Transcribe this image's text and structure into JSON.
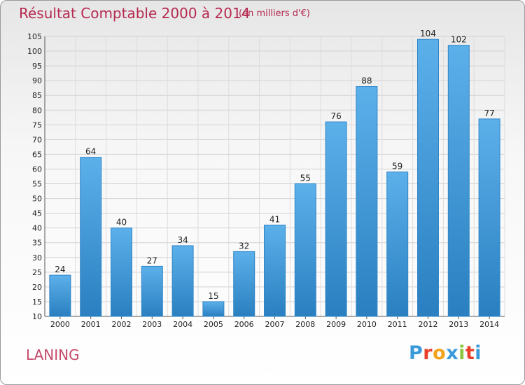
{
  "header": {
    "title": "Résultat Comptable 2000 à 2014",
    "subtitle": "(en milliers d'€)"
  },
  "footer": {
    "place": "LANING",
    "logo_letters": [
      "P",
      "r",
      "o",
      "x",
      "i",
      "t",
      "i"
    ],
    "logo_colors": [
      "#3a9ad9",
      "#e8402a",
      "#f2a31b",
      "#3a9ad9",
      "#8dc63f",
      "#e8402a",
      "#3a9ad9"
    ]
  },
  "chart_data": {
    "type": "bar",
    "title": "Résultat Comptable 2000 à 2014",
    "subtitle": "(en milliers d'€)",
    "categories": [
      "2000",
      "2001",
      "2002",
      "2003",
      "2004",
      "2005",
      "2006",
      "2007",
      "2008",
      "2009",
      "2010",
      "2011",
      "2012",
      "2013",
      "2014"
    ],
    "values": [
      24,
      64,
      40,
      27,
      34,
      15,
      32,
      41,
      55,
      76,
      88,
      59,
      104,
      102,
      77
    ],
    "ylim": [
      10,
      105
    ],
    "yticks": [
      10,
      15,
      20,
      25,
      30,
      35,
      40,
      45,
      50,
      55,
      60,
      65,
      70,
      75,
      80,
      85,
      90,
      95,
      100,
      105
    ],
    "grid": true,
    "bar_color": "#4aa3e2"
  }
}
